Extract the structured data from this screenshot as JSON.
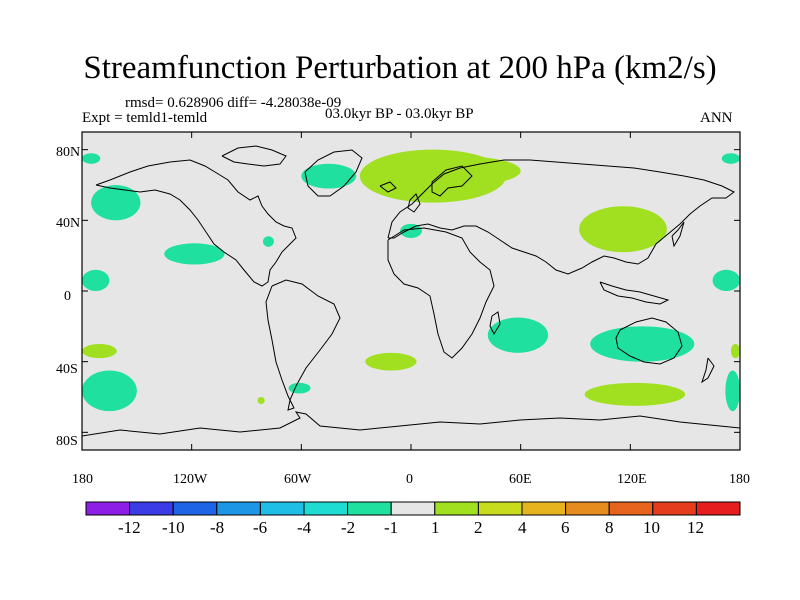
{
  "header": {
    "title": "Streamfunction Perturbation at 200 hPa (km2/s)",
    "stats": "rmsd= 0.628906 diff= -4.28038e-09",
    "expt": "Expt = temld1-temld",
    "period": "03.0kyr BP - 03.0kyr BP",
    "season": "ANN"
  },
  "axes": {
    "lat_labels": [
      "80N",
      "40N",
      "0",
      "40S",
      "80S"
    ],
    "lon_labels": [
      "180",
      "120W",
      "60W",
      "0",
      "60E",
      "120E",
      "180"
    ],
    "lat_values": [
      80,
      40,
      0,
      -40,
      -80
    ],
    "lon_values": [
      -180,
      -120,
      -60,
      0,
      60,
      120,
      180
    ]
  },
  "colors": {
    "ocean_background": "#e6e6e6",
    "coast": "#000000",
    "neg_small": "#20e0a0",
    "pos_small": "#a0e020"
  },
  "colorbar": {
    "labels": [
      "-12",
      "-10",
      "-8",
      "-6",
      "-4",
      "-2",
      "-1",
      "1",
      "2",
      "4",
      "6",
      "8",
      "10",
      "12"
    ],
    "colors": [
      "#8c1ee6",
      "#3c3ce6",
      "#1e64e6",
      "#1e96e6",
      "#1ebee6",
      "#1edcd2",
      "#20e0a0",
      "#e6e6e6",
      "#a0e020",
      "#c8dc1e",
      "#e6b41e",
      "#e68c1e",
      "#e6641e",
      "#e63c1e",
      "#e61e1e"
    ]
  },
  "chart_data": {
    "type": "heatmap",
    "title": "Streamfunction Perturbation at 200 hPa (km2/s)",
    "variable": "streamfunction perturbation",
    "level": "200 hPa",
    "units": "km2/s",
    "contour_levels": [
      -12,
      -10,
      -8,
      -6,
      -4,
      -2,
      -1,
      1,
      2,
      4,
      6,
      8,
      10,
      12
    ],
    "xlim": [
      -180,
      180
    ],
    "ylim": [
      -90,
      90
    ],
    "regions": [
      {
        "name": "north-atlantic-europe-positive",
        "sign": "positive",
        "band": "1 to 2",
        "lon": [
          -28,
          52
        ],
        "lat": [
          50,
          80
        ]
      },
      {
        "name": "north-asia-positive",
        "sign": "positive",
        "band": "1 to 2",
        "lon": [
          0,
          60
        ],
        "lat": [
          60,
          76
        ]
      },
      {
        "name": "western-pacific-positive",
        "sign": "positive",
        "band": "1 to 2",
        "lon": [
          92,
          140
        ],
        "lat": [
          22,
          48
        ]
      },
      {
        "name": "southern-africa-negative",
        "sign": "negative",
        "band": "-2 to -1",
        "lon": [
          42,
          75
        ],
        "lat": [
          -35,
          -15
        ]
      },
      {
        "name": "australia-negative",
        "sign": "negative",
        "band": "-2 to -1",
        "lon": [
          98,
          155
        ],
        "lat": [
          -40,
          -20
        ]
      },
      {
        "name": "south-indian-ocean-positive",
        "sign": "positive",
        "band": "1 to 2",
        "lon": [
          95,
          150
        ],
        "lat": [
          -65,
          -52
        ]
      },
      {
        "name": "south-atlantic-positive",
        "sign": "positive",
        "band": "1 to 2",
        "lon": [
          -25,
          3
        ],
        "lat": [
          -45,
          -35
        ]
      },
      {
        "name": "greenland-negative",
        "sign": "negative",
        "band": "-2 to -1",
        "lon": [
          -60,
          -30
        ],
        "lat": [
          58,
          72
        ]
      },
      {
        "name": "north-pacific-negative",
        "sign": "negative",
        "band": "-2 to -1",
        "lon": [
          -175,
          -148
        ],
        "lat": [
          40,
          60
        ]
      },
      {
        "name": "eastern-pacific-negative",
        "sign": "negative",
        "band": "-2 to -1",
        "lon": [
          -135,
          -102
        ],
        "lat": [
          15,
          27
        ]
      },
      {
        "name": "south-pacific-negative",
        "sign": "negative",
        "band": "-2 to -1",
        "lon": [
          -180,
          -150
        ],
        "lat": [
          -68,
          -45
        ]
      },
      {
        "name": "south-pacific-small-positive",
        "sign": "positive",
        "band": "1 to 2",
        "lon": [
          -180,
          -161
        ],
        "lat": [
          -38,
          -30
        ]
      },
      {
        "name": "pacific-equator-west-negative",
        "sign": "negative",
        "band": "-2 to -1",
        "lon": [
          -180,
          -165
        ],
        "lat": [
          0,
          12
        ]
      },
      {
        "name": "pacific-equator-east-negative",
        "sign": "negative",
        "band": "-2 to -1",
        "lon": [
          165,
          180
        ],
        "lat": [
          0,
          12
        ]
      },
      {
        "name": "south-pacific-east-negative",
        "sign": "negative",
        "band": "-2 to -1",
        "lon": [
          172,
          180
        ],
        "lat": [
          -68,
          -45
        ]
      },
      {
        "name": "drake-passage-negative",
        "sign": "negative",
        "band": "-2 to -1",
        "lon": [
          -67,
          -55
        ],
        "lat": [
          -58,
          -52
        ]
      },
      {
        "name": "arctic-pacific-negative",
        "sign": "negative",
        "band": "-2 to -1",
        "lon": [
          -180,
          -170
        ],
        "lat": [
          72,
          78
        ]
      },
      {
        "name": "arctic-pacific-east-negative",
        "sign": "negative",
        "band": "-2 to -1",
        "lon": [
          170,
          180
        ],
        "lat": [
          72,
          78
        ]
      },
      {
        "name": "mediterranean-negative",
        "sign": "negative",
        "band": "-2 to -1",
        "lon": [
          -6,
          6
        ],
        "lat": [
          30,
          38
        ]
      },
      {
        "name": "florida-negative",
        "sign": "negative",
        "band": "-2 to -1",
        "lon": [
          -81,
          -75
        ],
        "lat": [
          25,
          31
        ]
      },
      {
        "name": "south-america-tip-positive",
        "sign": "positive",
        "band": "1 to 2",
        "lon": [
          -84,
          -80
        ],
        "lat": [
          -64,
          -60
        ]
      },
      {
        "name": "south-pacific-far-east-positive",
        "sign": "positive",
        "band": "1 to 2",
        "lon": [
          175,
          180
        ],
        "lat": [
          -38,
          -30
        ]
      }
    ]
  }
}
